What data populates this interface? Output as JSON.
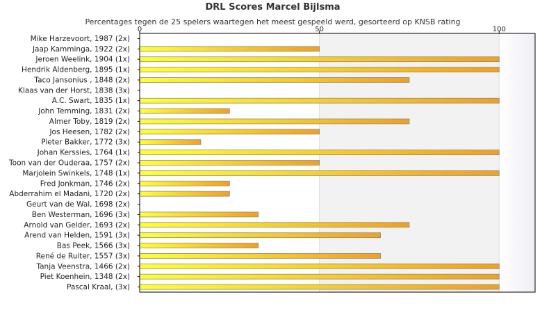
{
  "chart_data": {
    "type": "bar",
    "orientation": "horizontal",
    "title": "DRL Scores Marcel Bijlsma",
    "subtitle": "Percentages tegen de 25 spelers waartegen het meest gespeeld werd, gesorteerd op KNSB rating",
    "xlabel": "",
    "ylabel": "",
    "xlim": [
      0,
      110
    ],
    "xticks": [
      0,
      50,
      100
    ],
    "grid": true,
    "legend": "none",
    "categories": [
      "Mike Harzevoort, 1987 (2x)",
      "Jaap Kamminga, 1922 (2x)",
      "Jeroen Weelink, 1904 (1x)",
      "Hendrik Aldenberg, 1895 (1x)",
      "Taco Jansonius , 1848 (2x)",
      "Klaas van der Horst, 1838 (3x)",
      "A.C. Swart, 1835 (1x)",
      "John Temming, 1831 (2x)",
      "Almer Toby, 1819 (2x)",
      "Jos Heesen, 1782 (2x)",
      "Pieter Bakker, 1772 (3x)",
      "Johan Kerssies, 1764 (1x)",
      "Toon van der Ouderaa, 1757 (2x)",
      "Marjolein Swinkels, 1748 (1x)",
      "Fred Jonkman, 1746 (2x)",
      "Abderrahim el Madani, 1720 (2x)",
      "Geurt van de Wal, 1698 (2x)",
      "Ben Westerman, 1696 (3x)",
      "Arnold van Gelder, 1693 (2x)",
      "Arend van Helden, 1591 (3x)",
      "Bas Peek, 1566 (3x)",
      "René de Ruiter, 1557 (3x)",
      "Tanja Veenstra, 1466 (2x)",
      "Piet Koenhein, 1348 (2x)",
      "Pascal Kraal,  (3x)"
    ],
    "values": [
      0,
      50,
      100,
      100,
      75,
      0,
      100,
      25,
      75,
      50,
      17,
      100,
      50,
      100,
      25,
      25,
      0,
      33,
      75,
      67,
      33,
      67,
      100,
      100,
      100
    ],
    "colors": {
      "bar_start": "#ffff33",
      "bar_end": "#f0a020",
      "bar_border": "#8a8a8a",
      "plot_bg": "#ffffff",
      "band_bg": "#f2f2f2",
      "grid": "#dddddd",
      "axis": "#000000"
    }
  }
}
